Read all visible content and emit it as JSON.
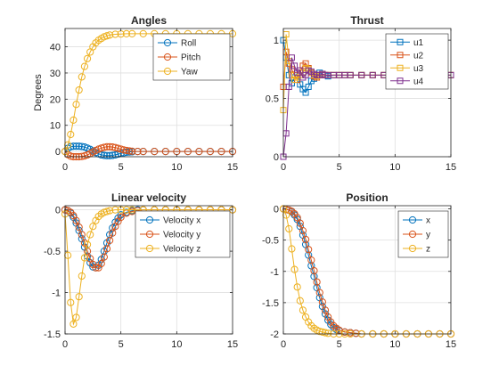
{
  "chart_data": [
    {
      "type": "line",
      "title": "Angles",
      "ylabel": "Degrees",
      "xlim": [
        0,
        15
      ],
      "ylim": [
        -2,
        47
      ],
      "xticks": [
        0,
        5,
        10,
        15
      ],
      "yticks": [
        0,
        10,
        20,
        30,
        40
      ],
      "grid": true,
      "legend_position": "top-right",
      "marker": "circle",
      "series": [
        {
          "name": "Roll",
          "color": "#0072BD",
          "x": [
            0,
            0.25,
            0.5,
            0.75,
            1,
            1.25,
            1.5,
            1.75,
            2,
            2.25,
            2.5,
            2.75,
            3,
            3.25,
            3.5,
            3.75,
            4,
            4.25,
            4.5,
            4.75,
            5,
            5.25,
            5.5,
            5.75,
            6,
            6.5,
            7,
            8,
            9,
            10,
            11,
            12,
            13,
            14,
            15
          ],
          "y": [
            0,
            1.2,
            1.8,
            2.0,
            2.0,
            2.0,
            1.9,
            1.7,
            1.3,
            0.8,
            0.2,
            -0.4,
            -0.9,
            -1.3,
            -1.5,
            -1.6,
            -1.6,
            -1.5,
            -1.3,
            -1.0,
            -0.7,
            -0.5,
            -0.3,
            -0.2,
            -0.1,
            0,
            0,
            0,
            0,
            0,
            0,
            0,
            0,
            0,
            0
          ]
        },
        {
          "name": "Pitch",
          "color": "#D95319",
          "x": [
            0,
            0.25,
            0.5,
            0.75,
            1,
            1.25,
            1.5,
            1.75,
            2,
            2.25,
            2.5,
            2.75,
            3,
            3.25,
            3.5,
            3.75,
            4,
            4.25,
            4.5,
            4.75,
            5,
            5.25,
            5.5,
            5.75,
            6,
            6.5,
            7,
            8,
            9,
            10,
            11,
            12,
            13,
            14,
            15
          ],
          "y": [
            0,
            -1.2,
            -1.8,
            -2.0,
            -2.0,
            -2.0,
            -1.9,
            -1.7,
            -1.3,
            -0.8,
            -0.2,
            0.4,
            0.9,
            1.3,
            1.6,
            1.8,
            1.8,
            1.7,
            1.5,
            1.2,
            0.9,
            0.6,
            0.4,
            0.2,
            0.1,
            0,
            0,
            0,
            0,
            0,
            0,
            0,
            0,
            0,
            0
          ]
        },
        {
          "name": "Yaw",
          "color": "#EDB120",
          "x": [
            0,
            0.25,
            0.5,
            0.75,
            1,
            1.25,
            1.5,
            1.75,
            2,
            2.25,
            2.5,
            2.75,
            3,
            3.25,
            3.5,
            3.75,
            4,
            4.5,
            5,
            5.5,
            6,
            7,
            8,
            9,
            10,
            11,
            12,
            13,
            14,
            15
          ],
          "y": [
            0,
            2.5,
            6.5,
            12,
            18,
            23.5,
            28.5,
            32.5,
            35.5,
            38,
            40,
            41.5,
            42.5,
            43.2,
            43.8,
            44.2,
            44.5,
            44.8,
            44.9,
            45,
            45,
            45,
            45,
            45,
            45,
            45,
            45,
            45,
            45,
            45
          ]
        }
      ]
    },
    {
      "type": "line",
      "title": "Thrust",
      "xlim": [
        0,
        15
      ],
      "ylim": [
        0,
        1.1
      ],
      "xticks": [
        0,
        5,
        10,
        15
      ],
      "yticks": [
        0,
        0.5,
        1
      ],
      "grid": true,
      "legend_position": "top-right",
      "marker": "square",
      "series": [
        {
          "name": "u1",
          "color": "#0072BD",
          "x": [
            0,
            0.25,
            0.5,
            0.75,
            1,
            1.25,
            1.5,
            1.75,
            2,
            2.25,
            2.5,
            2.75,
            3,
            3.25,
            3.5,
            3.75,
            4,
            4.5,
            5,
            5.5,
            6,
            7,
            8,
            9,
            10,
            11,
            12,
            13,
            14,
            15
          ],
          "y": [
            1.0,
            0.85,
            0.7,
            0.63,
            0.68,
            0.72,
            0.62,
            0.58,
            0.55,
            0.6,
            0.65,
            0.67,
            0.7,
            0.72,
            0.71,
            0.7,
            0.69,
            0.7,
            0.7,
            0.7,
            0.7,
            0.7,
            0.7,
            0.7,
            0.7,
            0.7,
            0.7,
            0.7,
            0.7,
            0.7
          ]
        },
        {
          "name": "u2",
          "color": "#D95319",
          "x": [
            0,
            0.25,
            0.5,
            0.75,
            1,
            1.25,
            1.5,
            1.75,
            2,
            2.25,
            2.5,
            2.75,
            3,
            3.25,
            3.5,
            3.75,
            4,
            4.5,
            5,
            5.5,
            6,
            7,
            8,
            9,
            10,
            11,
            12,
            13,
            14,
            15
          ],
          "y": [
            0.6,
            0.9,
            0.8,
            0.75,
            0.7,
            0.66,
            0.72,
            0.78,
            0.8,
            0.76,
            0.72,
            0.69,
            0.68,
            0.7,
            0.71,
            0.7,
            0.7,
            0.7,
            0.7,
            0.7,
            0.7,
            0.7,
            0.7,
            0.7,
            0.7,
            0.7,
            0.7,
            0.7,
            0.7,
            0.7
          ]
        },
        {
          "name": "u3",
          "color": "#EDB120",
          "x": [
            0,
            0.25,
            0.5,
            0.75,
            1,
            1.25,
            1.5,
            1.75,
            2,
            2.25,
            2.5,
            2.75,
            3,
            3.25,
            3.5,
            3.75,
            4,
            4.5,
            5,
            5.5,
            6,
            7,
            8,
            9,
            10,
            11,
            12,
            13,
            14,
            15
          ],
          "y": [
            0.4,
            1.05,
            0.82,
            0.7,
            0.66,
            0.68,
            0.7,
            0.72,
            0.76,
            0.75,
            0.72,
            0.7,
            0.69,
            0.7,
            0.7,
            0.7,
            0.7,
            0.7,
            0.7,
            0.7,
            0.7,
            0.7,
            0.7,
            0.7,
            0.7,
            0.7,
            0.7,
            0.7,
            0.7,
            0.7
          ]
        },
        {
          "name": "u4",
          "color": "#7E2F8E",
          "x": [
            0,
            0.25,
            0.5,
            0.75,
            1,
            1.25,
            1.5,
            1.75,
            2,
            2.25,
            2.5,
            2.75,
            3,
            3.25,
            3.5,
            3.75,
            4,
            4.5,
            5,
            5.5,
            6,
            7,
            8,
            9,
            10,
            11,
            12,
            13,
            14,
            15
          ],
          "y": [
            0.0,
            0.2,
            0.6,
            0.85,
            0.78,
            0.72,
            0.74,
            0.68,
            0.7,
            0.74,
            0.73,
            0.71,
            0.7,
            0.7,
            0.71,
            0.7,
            0.7,
            0.7,
            0.7,
            0.7,
            0.7,
            0.7,
            0.7,
            0.7,
            0.7,
            0.7,
            0.7,
            0.7,
            0.7,
            0.7
          ]
        }
      ]
    },
    {
      "type": "line",
      "title": "Linear velocity",
      "xlim": [
        0,
        15
      ],
      "ylim": [
        -1.5,
        0.05
      ],
      "xticks": [
        0,
        5,
        10,
        15
      ],
      "yticks": [
        -1.5,
        -1,
        -0.5,
        0
      ],
      "grid": true,
      "legend_position": "top-right",
      "marker": "circle",
      "series": [
        {
          "name": "Velocity x",
          "color": "#0072BD",
          "x": [
            0,
            0.25,
            0.5,
            0.75,
            1,
            1.25,
            1.5,
            1.75,
            2,
            2.25,
            2.5,
            2.75,
            3,
            3.25,
            3.5,
            3.75,
            4,
            4.25,
            4.5,
            4.75,
            5,
            5.5,
            6,
            6.5,
            7,
            8,
            9,
            10,
            11,
            12,
            13,
            14,
            15
          ],
          "y": [
            0,
            -0.01,
            -0.04,
            -0.09,
            -0.16,
            -0.25,
            -0.35,
            -0.45,
            -0.56,
            -0.64,
            -0.69,
            -0.7,
            -0.67,
            -0.6,
            -0.5,
            -0.4,
            -0.3,
            -0.22,
            -0.15,
            -0.1,
            -0.06,
            -0.03,
            -0.01,
            0,
            0,
            0,
            0,
            0,
            0,
            0,
            0,
            0,
            0
          ]
        },
        {
          "name": "Velocity y",
          "color": "#D95319",
          "x": [
            0,
            0.25,
            0.5,
            0.75,
            1,
            1.25,
            1.5,
            1.75,
            2,
            2.25,
            2.5,
            2.75,
            3,
            3.25,
            3.5,
            3.75,
            4,
            4.25,
            4.5,
            4.75,
            5,
            5.5,
            6,
            6.5,
            7,
            8,
            9,
            10,
            11,
            12,
            13,
            14,
            15
          ],
          "y": [
            0,
            -0.01,
            -0.03,
            -0.07,
            -0.13,
            -0.21,
            -0.3,
            -0.4,
            -0.5,
            -0.59,
            -0.66,
            -0.7,
            -0.7,
            -0.65,
            -0.57,
            -0.47,
            -0.37,
            -0.28,
            -0.2,
            -0.14,
            -0.09,
            -0.04,
            -0.02,
            -0.01,
            0,
            0,
            0,
            0,
            0,
            0,
            0,
            0,
            0
          ]
        },
        {
          "name": "Velocity z",
          "color": "#EDB120",
          "x": [
            0,
            0.25,
            0.5,
            0.75,
            1,
            1.25,
            1.5,
            1.75,
            2,
            2.25,
            2.5,
            2.75,
            3,
            3.25,
            3.5,
            3.75,
            4,
            4.5,
            5,
            5.5,
            6,
            7,
            8,
            9,
            10,
            11,
            12,
            13,
            14,
            15
          ],
          "y": [
            -0.05,
            -0.55,
            -1.12,
            -1.38,
            -1.3,
            -1.05,
            -0.8,
            -0.58,
            -0.42,
            -0.3,
            -0.2,
            -0.13,
            -0.08,
            -0.05,
            -0.03,
            -0.02,
            -0.01,
            0,
            0,
            0,
            0,
            0,
            0,
            0,
            0,
            0,
            0,
            0,
            0,
            0
          ]
        }
      ]
    },
    {
      "type": "line",
      "title": "Position",
      "xlim": [
        0,
        15
      ],
      "ylim": [
        -2,
        0.05
      ],
      "xticks": [
        0,
        5,
        10,
        15
      ],
      "yticks": [
        -2,
        -1.5,
        -1,
        -0.5,
        0
      ],
      "grid": true,
      "legend_position": "top-right",
      "marker": "circle",
      "series": [
        {
          "name": "x",
          "color": "#0072BD",
          "x": [
            0,
            0.25,
            0.5,
            0.75,
            1,
            1.25,
            1.5,
            1.75,
            2,
            2.25,
            2.5,
            2.75,
            3,
            3.25,
            3.5,
            3.75,
            4,
            4.25,
            4.5,
            4.75,
            5,
            5.5,
            6,
            6.5,
            7,
            8,
            9,
            10,
            11,
            12,
            13,
            14,
            15
          ],
          "y": [
            0,
            -0.01,
            -0.02,
            -0.05,
            -0.1,
            -0.17,
            -0.28,
            -0.42,
            -0.57,
            -0.74,
            -0.91,
            -1.08,
            -1.26,
            -1.42,
            -1.56,
            -1.68,
            -1.78,
            -1.85,
            -1.9,
            -1.93,
            -1.95,
            -1.97,
            -1.98,
            -1.99,
            -2.0,
            -2.0,
            -2.0,
            -2.0,
            -2.0,
            -2.0,
            -2.0,
            -2.0,
            -2.0
          ]
        },
        {
          "name": "y",
          "color": "#D95319",
          "x": [
            0,
            0.25,
            0.5,
            0.75,
            1,
            1.25,
            1.5,
            1.75,
            2,
            2.25,
            2.5,
            2.75,
            3,
            3.25,
            3.5,
            3.75,
            4,
            4.25,
            4.5,
            4.75,
            5,
            5.5,
            6,
            6.5,
            7,
            8,
            9,
            10,
            11,
            12,
            13,
            14,
            15
          ],
          "y": [
            0,
            -0.01,
            -0.02,
            -0.04,
            -0.08,
            -0.14,
            -0.23,
            -0.35,
            -0.49,
            -0.65,
            -0.82,
            -0.99,
            -1.17,
            -1.34,
            -1.49,
            -1.62,
            -1.73,
            -1.81,
            -1.87,
            -1.91,
            -1.94,
            -1.97,
            -1.98,
            -1.99,
            -2.0,
            -2.0,
            -2.0,
            -2.0,
            -2.0,
            -2.0,
            -2.0,
            -2.0,
            -2.0
          ]
        },
        {
          "name": "z",
          "color": "#EDB120",
          "x": [
            0,
            0.25,
            0.5,
            0.75,
            1,
            1.25,
            1.5,
            1.75,
            2,
            2.25,
            2.5,
            2.75,
            3,
            3.25,
            3.5,
            3.75,
            4,
            4.5,
            5,
            5.5,
            6,
            7,
            8,
            9,
            10,
            11,
            12,
            13,
            14,
            15
          ],
          "y": [
            0,
            -0.1,
            -0.32,
            -0.64,
            -0.97,
            -1.25,
            -1.47,
            -1.62,
            -1.73,
            -1.81,
            -1.87,
            -1.91,
            -1.94,
            -1.96,
            -1.97,
            -1.98,
            -1.99,
            -2.0,
            -2.0,
            -2.0,
            -2.0,
            -2.0,
            -2.0,
            -2.0,
            -2.0,
            -2.0,
            -2.0,
            -2.0,
            -2.0,
            -2.0
          ]
        }
      ]
    }
  ]
}
